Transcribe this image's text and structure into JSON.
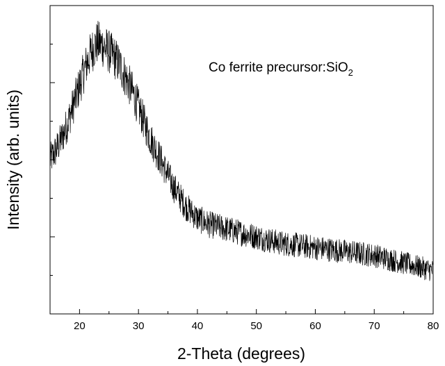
{
  "chart_data": {
    "type": "line",
    "title": "",
    "xlabel": "2-Theta (degrees)",
    "ylabel": "Intensity (arb. units)",
    "xlim": [
      15,
      80
    ],
    "ylim": [
      0,
      100
    ],
    "x_ticks": [
      20,
      30,
      40,
      50,
      60,
      70,
      80
    ],
    "y_ticks_labeled": false,
    "grid": false,
    "legend": "none",
    "annotation": {
      "text": "Co ferrite precursor:SiO",
      "subscript": "2"
    },
    "line_color": "#000000",
    "series": [
      {
        "x": [
          15,
          16,
          17,
          18,
          19,
          20,
          21,
          22,
          23,
          24,
          25,
          26,
          27,
          28,
          29,
          30,
          31,
          32,
          33,
          34,
          35,
          36,
          37,
          38,
          39,
          40,
          42,
          44,
          46,
          48,
          50,
          52,
          54,
          56,
          58,
          60,
          62,
          64,
          66,
          68,
          70,
          72,
          74,
          76,
          78,
          80
        ],
        "values": [
          50,
          53,
          57,
          62,
          68,
          74,
          80,
          85,
          88,
          87,
          85,
          83,
          80,
          76,
          72,
          67,
          62,
          57,
          53,
          49,
          45,
          41,
          38,
          35,
          33,
          31,
          29,
          28,
          27,
          26,
          25,
          24,
          23,
          22.5,
          22,
          21.5,
          21,
          20.5,
          20,
          19.5,
          19,
          18,
          17,
          16,
          15,
          14
        ]
      }
    ]
  }
}
